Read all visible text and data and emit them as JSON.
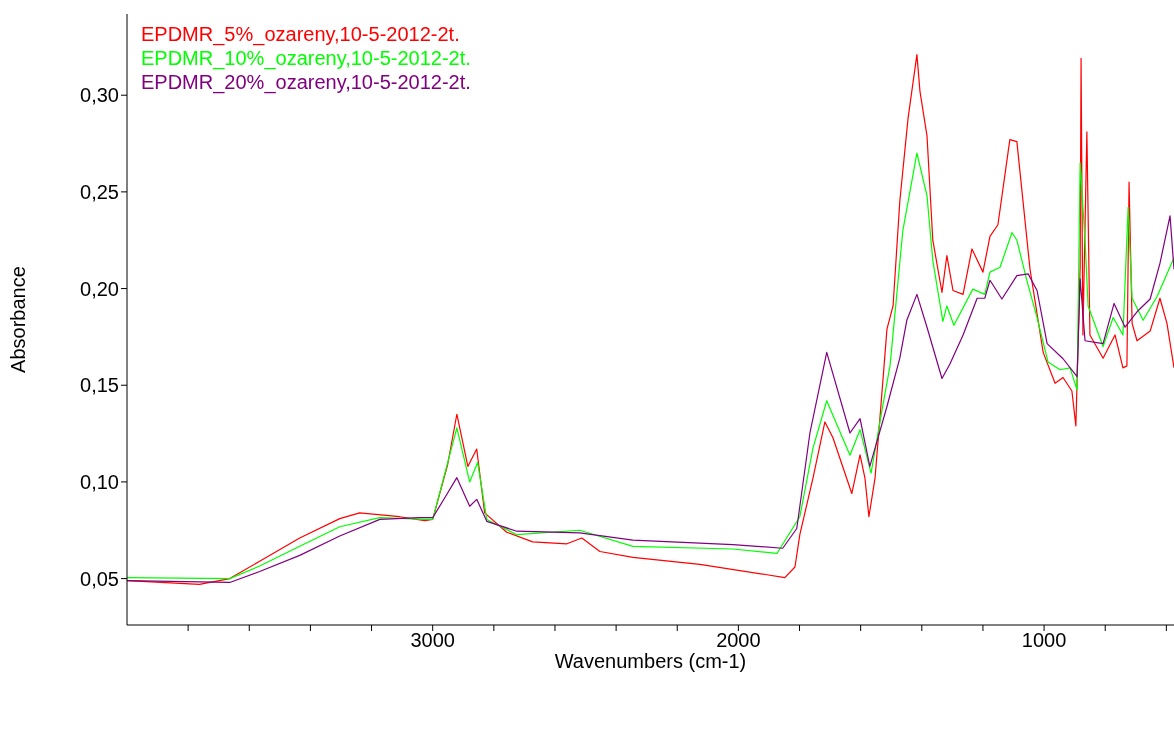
{
  "chart_data": {
    "type": "line",
    "xlabel": "Wavenumbers (cm-1)",
    "ylabel": "Absorbance",
    "xlim": [
      4000,
      575
    ],
    "xticks": [
      {
        "value": 3800,
        "label": null
      },
      {
        "value": 3600,
        "label": null
      },
      {
        "value": 3400,
        "label": null
      },
      {
        "value": 3200,
        "label": null
      },
      3000,
      {
        "value": 2800,
        "label": null
      },
      {
        "value": 2600,
        "label": null
      },
      {
        "value": 2400,
        "label": null
      },
      {
        "value": 2200,
        "label": null
      },
      2000,
      {
        "value": 1800,
        "label": null
      },
      {
        "value": 1600,
        "label": null
      },
      {
        "value": 1400,
        "label": null
      },
      {
        "value": 1200,
        "label": null
      },
      1000,
      {
        "value": 800,
        "label": null
      },
      {
        "value": 600,
        "label": null
      }
    ],
    "ylim": [
      0.026,
      0.342
    ],
    "yticks": [
      {
        "value": 0.05,
        "label": "0,05"
      },
      {
        "value": 0.1,
        "label": "0,10"
      },
      {
        "value": 0.15,
        "label": "0,15"
      },
      {
        "value": 0.2,
        "label": "0,20"
      },
      {
        "value": 0.25,
        "label": "0,25"
      },
      {
        "value": 0.3,
        "label": "0,30"
      }
    ],
    "legend": "top left",
    "grid": false,
    "marker": "none",
    "line_style": "solid",
    "series": [
      {
        "name": "EPDMR_5%_ozareny,10-5-2012-2t.",
        "color": "#ff0000",
        "x": [
          4000,
          3763,
          3664,
          3566,
          3435,
          3304,
          3239,
          3108,
          3026,
          3000,
          2951,
          2921,
          2885,
          2856,
          2830,
          2758,
          2673,
          2561,
          2512,
          2453,
          2345,
          2126,
          1907,
          1848,
          1815,
          1799,
          1756,
          1717,
          1691,
          1629,
          1602,
          1586,
          1573,
          1553,
          1537,
          1514,
          1494,
          1472,
          1445,
          1416,
          1406,
          1383,
          1364,
          1334,
          1318,
          1298,
          1265,
          1236,
          1200,
          1177,
          1151,
          1112,
          1089,
          1046,
          1003,
          964,
          938,
          909,
          896,
          882,
          879,
          873,
          860,
          850,
          807,
          768,
          742,
          729,
          722,
          712,
          696,
          653,
          621,
          598,
          575
        ],
        "values": [
          0.049,
          0.047,
          0.05,
          0.059,
          0.071,
          0.081,
          0.084,
          0.082,
          0.08,
          0.0806,
          0.109,
          0.135,
          0.108,
          0.117,
          0.084,
          0.074,
          0.069,
          0.068,
          0.071,
          0.064,
          0.061,
          0.0574,
          0.052,
          0.0505,
          0.056,
          0.0727,
          0.102,
          0.131,
          0.123,
          0.094,
          0.114,
          0.102,
          0.082,
          0.102,
          0.133,
          0.179,
          0.191,
          0.245,
          0.288,
          0.321,
          0.302,
          0.279,
          0.225,
          0.198,
          0.217,
          0.199,
          0.197,
          0.2205,
          0.2085,
          0.227,
          0.233,
          0.277,
          0.276,
          0.21,
          0.167,
          0.151,
          0.154,
          0.147,
          0.129,
          0.211,
          0.319,
          0.176,
          0.281,
          0.176,
          0.164,
          0.176,
          0.159,
          0.16,
          0.255,
          0.182,
          0.173,
          0.178,
          0.195,
          0.182,
          0.159
        ]
      },
      {
        "name": "EPDMR_10%_ozareny,10-5-2012-2t.",
        "color": "#00ff00",
        "x": [
          4000,
          3664,
          3566,
          3435,
          3304,
          3173,
          3026,
          3000,
          2921,
          2879,
          2853,
          2823,
          2725,
          2519,
          2345,
          2018,
          1874,
          1799,
          1756,
          1711,
          1635,
          1602,
          1566,
          1527,
          1504,
          1462,
          1416,
          1383,
          1364,
          1331,
          1318,
          1295,
          1233,
          1194,
          1177,
          1144,
          1105,
          1089,
          1056,
          1023,
          987,
          948,
          915,
          892,
          882,
          866,
          856,
          807,
          774,
          742,
          725,
          712,
          676,
          630,
          575
        ],
        "values": [
          0.0505,
          0.05,
          0.0565,
          0.0667,
          0.0768,
          0.0815,
          0.0806,
          0.0806,
          0.128,
          0.1,
          0.11,
          0.0806,
          0.0727,
          0.075,
          0.0667,
          0.0653,
          0.063,
          0.082,
          0.1175,
          0.142,
          0.1138,
          0.127,
          0.1045,
          0.14,
          0.16,
          0.23,
          0.27,
          0.248,
          0.2145,
          0.183,
          0.191,
          0.181,
          0.1997,
          0.197,
          0.2085,
          0.211,
          0.229,
          0.225,
          0.204,
          0.185,
          0.162,
          0.158,
          0.159,
          0.1475,
          0.265,
          0.225,
          0.191,
          0.17,
          0.185,
          0.176,
          0.242,
          0.195,
          0.1836,
          0.196,
          0.216
        ]
      },
      {
        "name": "EPDMR_20%_ozareny,10-5-2012-2t.",
        "color": "#800080",
        "x": [
          4000,
          3664,
          3566,
          3435,
          3304,
          3173,
          3042,
          3000,
          2954,
          2921,
          2879,
          2856,
          2823,
          2725,
          2519,
          2345,
          2018,
          1855,
          1809,
          1766,
          1711,
          1635,
          1602,
          1570,
          1514,
          1472,
          1449,
          1416,
          1383,
          1334,
          1308,
          1265,
          1219,
          1194,
          1177,
          1138,
          1089,
          1052,
          1023,
          990,
          938,
          892,
          882,
          866,
          807,
          771,
          735,
          696,
          653,
          621,
          588,
          575
        ],
        "values": [
          0.049,
          0.048,
          0.0537,
          0.062,
          0.072,
          0.0806,
          0.0815,
          0.0815,
          0.0935,
          0.1022,
          0.0874,
          0.091,
          0.0796,
          0.0745,
          0.0736,
          0.0699,
          0.0676,
          0.0657,
          0.0759,
          0.1253,
          0.167,
          0.1253,
          0.1327,
          0.108,
          0.139,
          0.164,
          0.1836,
          0.197,
          0.18,
          0.1535,
          0.161,
          0.176,
          0.195,
          0.195,
          0.2043,
          0.1946,
          0.2067,
          0.2076,
          0.199,
          0.1715,
          0.1637,
          0.1544,
          0.205,
          0.173,
          0.1715,
          0.1923,
          0.18,
          0.188,
          0.1946,
          0.213,
          0.2376,
          0.21
        ]
      }
    ]
  }
}
